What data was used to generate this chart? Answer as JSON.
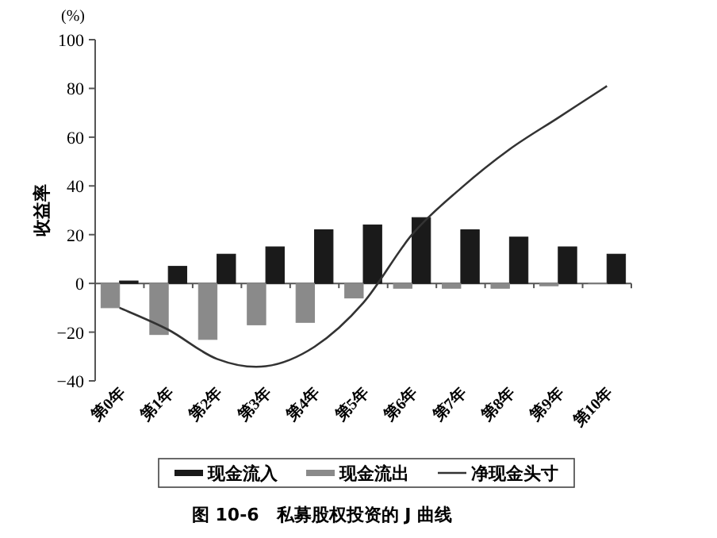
{
  "chart_data": {
    "type": "bar",
    "title": "图 10-6　私募股权投资的 J 曲线",
    "ylabel": "收益率",
    "annotations": [
      "(%)"
    ],
    "categories": [
      "第0年",
      "第1年",
      "第2年",
      "第3年",
      "第4年",
      "第5年",
      "第6年",
      "第7年",
      "第8年",
      "第9年",
      "第10年"
    ],
    "series": [
      {
        "name": "现金流入",
        "color": "#1a1a1a",
        "values": [
          1,
          7,
          12,
          15,
          22,
          24,
          27,
          22,
          19,
          15,
          12
        ]
      },
      {
        "name": "现金流出",
        "color": "#8a8a8a",
        "values": [
          -10,
          -21,
          -23,
          -17,
          -16,
          -6,
          -2,
          -2,
          -2,
          -1,
          0
        ]
      },
      {
        "name": "净现金头寸",
        "type": "line",
        "color": "#333333",
        "values": [
          -10,
          -19,
          -31,
          -34,
          -26,
          -8,
          20,
          39,
          55,
          68,
          81
        ]
      }
    ],
    "ylim": [
      -40,
      100
    ],
    "yticks": [
      -40,
      -20,
      0,
      20,
      40,
      60,
      80,
      100
    ],
    "legend": "bottom",
    "marker": "none",
    "line_style": "solid"
  }
}
